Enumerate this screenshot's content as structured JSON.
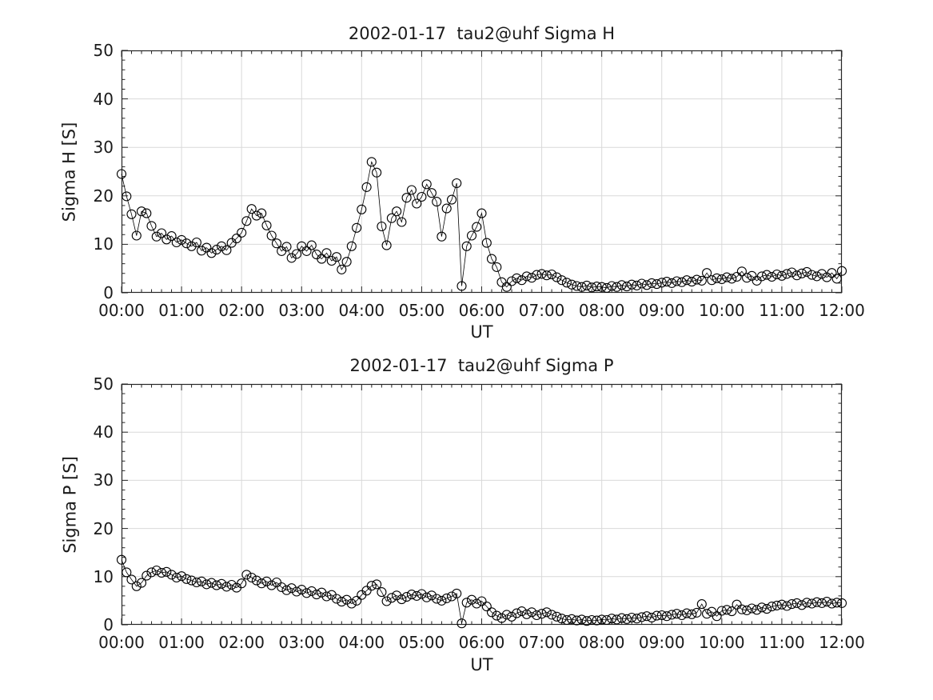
{
  "figure": {
    "background": "#ffffff"
  },
  "style": {
    "text_color": "#1a1a1a",
    "axis_color": "#262626",
    "grid_color": "#d9d9d9",
    "line_color": "#000000",
    "marker_color": "#000000"
  },
  "chart_data": [
    {
      "type": "line",
      "title": "2002-01-17  tau2@uhf Sigma H",
      "xlabel": "UT",
      "ylabel": "Sigma H [S]",
      "x_tick_labels": [
        "00:00",
        "01:00",
        "02:00",
        "03:00",
        "04:00",
        "05:00",
        "06:00",
        "07:00",
        "08:00",
        "09:00",
        "10:00",
        "11:00",
        "12:00"
      ],
      "y_tick_labels": [
        "0",
        "10",
        "20",
        "30",
        "40",
        "50"
      ],
      "xlim_hours": [
        0,
        12
      ],
      "ylim": [
        0,
        50
      ],
      "grid": true,
      "box": true,
      "marker": "open-circle",
      "sampling_minutes": 5,
      "start_time": "00:00",
      "values": [
        24.5,
        19.9,
        16.2,
        11.8,
        16.8,
        16.4,
        13.8,
        11.6,
        12.3,
        11.0,
        11.7,
        10.4,
        10.9,
        10.2,
        9.6,
        10.4,
        8.7,
        9.3,
        8.2,
        8.9,
        9.6,
        8.8,
        10.3,
        11.2,
        12.4,
        14.8,
        17.3,
        15.9,
        16.4,
        13.9,
        11.8,
        10.2,
        8.6,
        9.5,
        7.2,
        8.0,
        9.6,
        8.6,
        9.8,
        7.9,
        7.0,
        8.2,
        6.6,
        7.4,
        4.8,
        6.4,
        9.6,
        13.4,
        17.2,
        21.8,
        27.0,
        24.8,
        13.7,
        9.8,
        15.4,
        16.8,
        14.6,
        19.6,
        21.2,
        18.4,
        19.8,
        22.4,
        20.6,
        18.8,
        11.6,
        17.4,
        19.2,
        22.6,
        1.4,
        9.6,
        11.8,
        13.6,
        16.4,
        10.3,
        7.0,
        5.3,
        2.2,
        1.2,
        2.4,
        3.0,
        2.6,
        3.4,
        3.1,
        3.7,
        3.9,
        3.6,
        3.8,
        3.2,
        2.6,
        2.1,
        1.7,
        1.4,
        1.2,
        1.5,
        1.1,
        1.3,
        1.2,
        1.0,
        1.4,
        1.2,
        1.6,
        1.3,
        1.7,
        1.5,
        1.9,
        1.6,
        2.0,
        1.8,
        2.1,
        2.3,
        2.0,
        2.4,
        2.2,
        2.6,
        2.3,
        2.7,
        2.5,
        4.1,
        2.6,
        3.0,
        2.8,
        3.2,
        2.9,
        3.3,
        4.4,
        3.1,
        3.5,
        2.5,
        3.4,
        3.7,
        3.3,
        3.8,
        3.5,
        3.9,
        4.2,
        3.6,
        4.0,
        4.3,
        3.7,
        3.4,
        3.9,
        3.2,
        4.1,
        2.9,
        4.5
      ]
    },
    {
      "type": "line",
      "title": "2002-01-17  tau2@uhf Sigma P",
      "xlabel": "UT",
      "ylabel": "Sigma P [S]",
      "x_tick_labels": [
        "00:00",
        "01:00",
        "02:00",
        "03:00",
        "04:00",
        "05:00",
        "06:00",
        "07:00",
        "08:00",
        "09:00",
        "10:00",
        "11:00",
        "12:00"
      ],
      "y_tick_labels": [
        "0",
        "10",
        "20",
        "30",
        "40",
        "50"
      ],
      "xlim_hours": [
        0,
        12
      ],
      "ylim": [
        0,
        50
      ],
      "grid": true,
      "box": true,
      "marker": "open-circle",
      "sampling_minutes": 5,
      "start_time": "00:00",
      "values": [
        13.5,
        10.9,
        9.4,
        8.0,
        8.7,
        10.2,
        10.9,
        11.3,
        10.8,
        11.0,
        10.4,
        9.8,
        10.1,
        9.5,
        9.2,
        8.8,
        9.0,
        8.4,
        8.7,
        8.2,
        8.5,
        7.9,
        8.3,
        7.7,
        8.6,
        10.4,
        9.8,
        9.2,
        8.6,
        9.0,
        8.2,
        8.8,
        7.8,
        7.2,
        7.6,
        6.9,
        7.3,
        6.6,
        7.0,
        6.3,
        6.7,
        5.9,
        6.2,
        5.4,
        4.8,
        5.2,
        4.4,
        5.0,
        6.2,
        7.1,
        8.1,
        8.4,
        6.8,
        4.9,
        5.6,
        6.1,
        5.3,
        5.8,
        6.3,
        6.0,
        6.4,
        5.7,
        6.1,
        5.4,
        5.0,
        5.5,
        5.9,
        6.5,
        0.3,
        4.6,
        5.2,
        4.4,
        4.9,
        3.8,
        2.6,
        1.9,
        1.4,
        2.1,
        1.7,
        2.4,
        2.8,
        2.2,
        2.6,
        2.0,
        2.3,
        2.6,
        2.1,
        1.7,
        1.3,
        1.0,
        1.2,
        0.9,
        1.1,
        0.8,
        1.0,
        0.9,
        1.1,
        1.0,
        1.3,
        1.1,
        1.4,
        1.2,
        1.5,
        1.3,
        1.6,
        1.8,
        1.5,
        1.9,
        2.0,
        1.8,
        2.1,
        2.3,
        2.0,
        2.4,
        2.2,
        2.5,
        4.3,
        2.3,
        2.7,
        1.8,
        2.9,
        3.1,
        2.8,
        4.2,
        3.2,
        3.0,
        3.4,
        3.1,
        3.6,
        3.3,
        3.8,
        4.0,
        4.2,
        3.9,
        4.3,
        4.5,
        4.1,
        4.6,
        4.4,
        4.7,
        4.5,
        4.8,
        4.4,
        4.6,
        4.5
      ]
    }
  ]
}
